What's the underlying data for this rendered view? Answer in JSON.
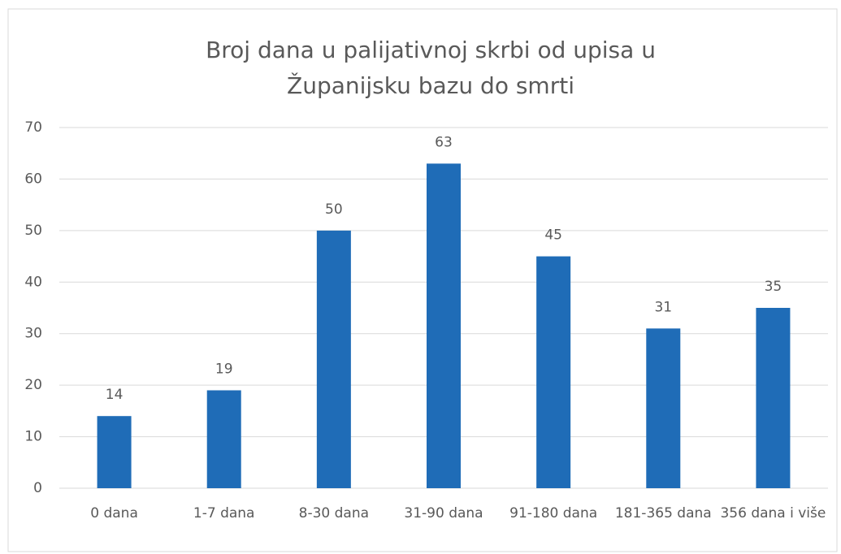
{
  "chart_data": {
    "type": "bar",
    "title": "Broj dana u palijativnoj skrbi od upisa u Županijsku bazu do smrti",
    "categories": [
      "0 dana",
      "1-7 dana",
      "8-30 dana",
      "31-90 dana",
      "91-180 dana",
      "181-365 dana",
      "356 dana i više"
    ],
    "values": [
      14,
      19,
      50,
      63,
      45,
      31,
      35
    ],
    "color": "#1f6cb7",
    "ylim": [
      0,
      70
    ],
    "yticks": [
      0,
      10,
      20,
      30,
      40,
      50,
      60,
      70
    ],
    "grid": true
  }
}
